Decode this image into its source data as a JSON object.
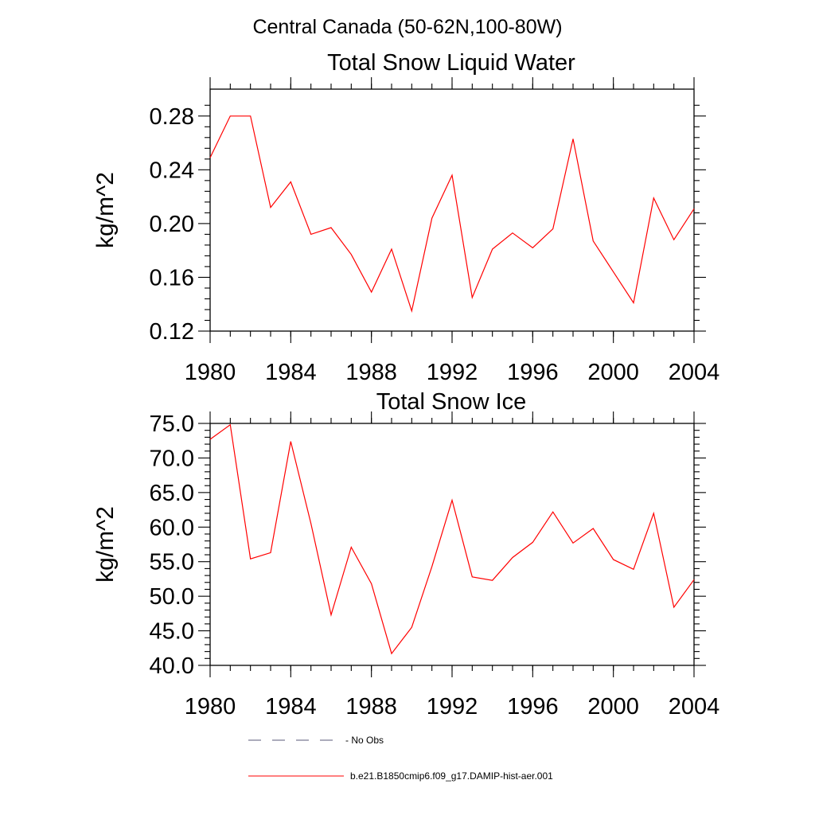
{
  "figure_title": "Central Canada (50-62N,100-80W)",
  "chart_data": [
    {
      "type": "line",
      "title": "Total Snow Liquid Water",
      "xlabel": "",
      "ylabel": "kg/m^2",
      "xlim": [
        1980,
        2004
      ],
      "ylim": [
        0.12,
        0.3
      ],
      "xticks": [
        1980,
        1984,
        1988,
        1992,
        1996,
        2000,
        2004
      ],
      "xtick_labels": [
        "1980",
        "1984",
        "1988",
        "1992",
        "1996",
        "2000",
        "2004"
      ],
      "yticks": [
        0.12,
        0.16,
        0.2,
        0.24,
        0.28
      ],
      "ytick_labels": [
        "0.12",
        "0.16",
        "0.20",
        "0.24",
        "0.28"
      ],
      "x": [
        1980,
        1981,
        1982,
        1983,
        1984,
        1985,
        1986,
        1987,
        1988,
        1989,
        1990,
        1991,
        1992,
        1993,
        1994,
        1995,
        1996,
        1997,
        1998,
        1999,
        2000,
        2001,
        2002,
        2003,
        2004
      ],
      "series": [
        {
          "name": "b.e21.B1850cmip6.f09_g17.DAMIP-hist-aer.001",
          "color": "#ff0000",
          "values": [
            0.249,
            0.28,
            0.28,
            0.212,
            0.231,
            0.192,
            0.197,
            0.177,
            0.149,
            0.181,
            0.135,
            0.204,
            0.236,
            0.145,
            0.181,
            0.193,
            0.182,
            0.196,
            0.263,
            0.187,
            0.164,
            0.141,
            0.219,
            0.188,
            0.211
          ]
        }
      ]
    },
    {
      "type": "line",
      "title": "Total Snow Ice",
      "xlabel": "",
      "ylabel": "kg/m^2",
      "xlim": [
        1980,
        2004
      ],
      "ylim": [
        40.0,
        75.0
      ],
      "xticks": [
        1980,
        1984,
        1988,
        1992,
        1996,
        2000,
        2004
      ],
      "xtick_labels": [
        "1980",
        "1984",
        "1988",
        "1992",
        "1996",
        "2000",
        "2004"
      ],
      "yticks": [
        40,
        45,
        50,
        55,
        60,
        65,
        70,
        75
      ],
      "ytick_labels": [
        "40.0",
        "45.0",
        "50.0",
        "55.0",
        "60.0",
        "65.0",
        "70.0",
        "75.0"
      ],
      "x": [
        1980,
        1981,
        1982,
        1983,
        1984,
        1985,
        1986,
        1987,
        1988,
        1989,
        1990,
        1991,
        1992,
        1993,
        1994,
        1995,
        1996,
        1997,
        1998,
        1999,
        2000,
        2001,
        2002,
        2003,
        2004
      ],
      "series": [
        {
          "name": "b.e21.B1850cmip6.f09_g17.DAMIP-hist-aer.001",
          "color": "#ff0000",
          "values": [
            72.7,
            74.8,
            55.4,
            56.3,
            72.4,
            60.5,
            47.3,
            57.1,
            51.8,
            41.7,
            45.5,
            54.3,
            63.9,
            52.8,
            52.3,
            55.6,
            57.8,
            62.2,
            57.7,
            59.8,
            55.3,
            53.9,
            62.0,
            48.4,
            52.4
          ]
        }
      ]
    }
  ],
  "legend": {
    "placement": "bottom",
    "items": [
      {
        "label": "- No Obs",
        "style": "dashed",
        "color": "#5a5a7a"
      },
      {
        "label": "b.e21.B1850cmip6.f09_g17.DAMIP-hist-aer.001",
        "style": "solid",
        "color": "#ff0000"
      }
    ]
  }
}
